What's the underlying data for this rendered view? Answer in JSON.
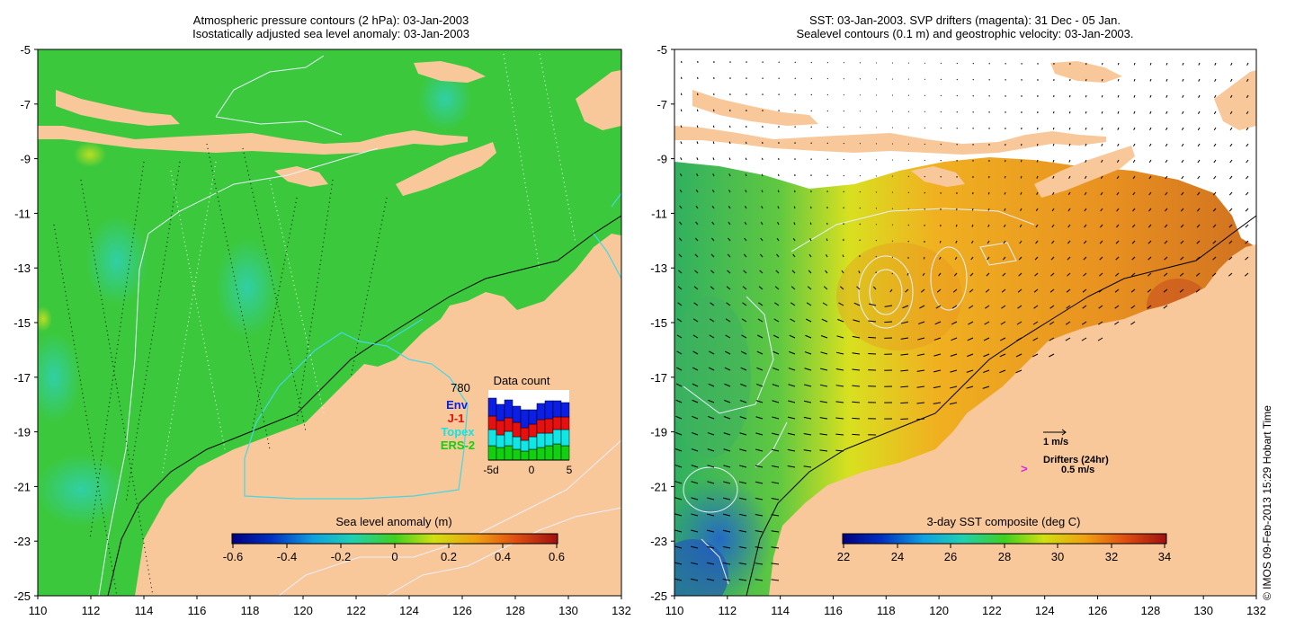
{
  "left_panel": {
    "title_line1": "Atmospheric pressure contours (2 hPa): 03-Jan-2003",
    "title_line2": "Isostatically adjusted sea level anomaly: 03-Jan-2003",
    "colorbar": {
      "label": "Sea level anomaly (m)",
      "ticks": [
        "-0.6",
        "-0.4",
        "-0.2",
        "0",
        "0.2",
        "0.4",
        "0.6"
      ]
    },
    "data_count": {
      "title": "Data count",
      "total": "780",
      "legend": [
        {
          "name": "Env",
          "color": "#0a1ee6"
        },
        {
          "name": "J-1",
          "color": "#e61010"
        },
        {
          "name": "Topex",
          "color": "#10e6e6"
        },
        {
          "name": "ERS-2",
          "color": "#10d010"
        }
      ],
      "xticks": [
        "-5d",
        "0",
        "5"
      ]
    }
  },
  "right_panel": {
    "title_line1": "SST: 03-Jan-2003. SVP drifters (magenta): 31 Dec - 05 Jan.",
    "title_line2": "Sealevel contours (0.1 m) and geostrophic velocity: 03-Jan-2003.",
    "colorbar": {
      "label": "3-day SST composite (deg C)",
      "ticks": [
        "22",
        "24",
        "26",
        "28",
        "30",
        "32",
        "34"
      ]
    },
    "scale_arrow_label": "1 m/s",
    "drifters_label": "Drifters (24hr)",
    "drifter_speed_label": "0.5 m/s",
    "drifter_symbol": ">"
  },
  "axes": {
    "yticks": [
      "-5",
      "-7",
      "-9",
      "-11",
      "-13",
      "-15",
      "-17",
      "-19",
      "-21",
      "-23",
      "-25"
    ],
    "xticks": [
      "110",
      "112",
      "114",
      "116",
      "118",
      "120",
      "122",
      "124",
      "126",
      "128",
      "130",
      "132"
    ]
  },
  "credit": "© IMOS 09-Feb-2013 15:29 Hobart Time",
  "colors": {
    "land": "#f9c89a",
    "ocean_sla": "#3cc83c",
    "sst_warm": "#f0a020",
    "sst_cool": "#40b040"
  }
}
